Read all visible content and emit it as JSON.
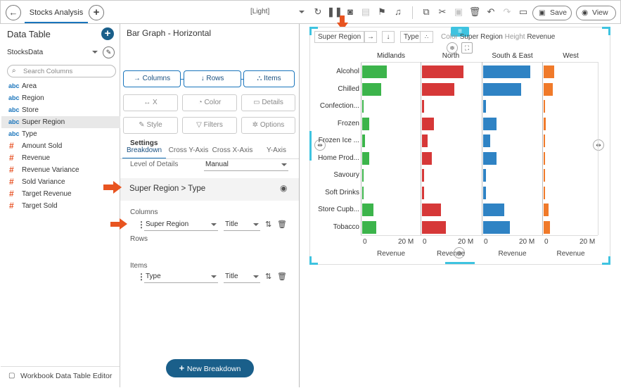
{
  "topbar": {
    "tab_label": "Stocks Analysis",
    "add_label": "+",
    "back_label": "←",
    "theme_label": "[Light]",
    "save_label": "Save",
    "view_label": "View"
  },
  "sidebar": {
    "title": "Data Table",
    "datasource": "StocksData",
    "search_placeholder": "Search Columns",
    "fields": [
      {
        "type": "abc",
        "name": "Area"
      },
      {
        "type": "abc",
        "name": "Region"
      },
      {
        "type": "abc",
        "name": "Store"
      },
      {
        "type": "abc",
        "name": "Super Region"
      },
      {
        "type": "abc",
        "name": "Type"
      },
      {
        "type": "#",
        "name": "Amount Sold"
      },
      {
        "type": "#",
        "name": "Revenue"
      },
      {
        "type": "#",
        "name": "Revenue Variance"
      },
      {
        "type": "#",
        "name": "Sold Variance"
      },
      {
        "type": "#",
        "name": "Target Revenue"
      },
      {
        "type": "#",
        "name": "Target Sold"
      }
    ],
    "footer_label": "Workbook Data Table Editor"
  },
  "panel": {
    "title": "Bar Graph - Horizontal",
    "segments": [
      "Columns",
      "Rows",
      "Items"
    ],
    "buttons": [
      "X",
      "Color",
      "Details",
      "Style",
      "Filters",
      "Options"
    ],
    "subtabs": [
      "Breakdown",
      "Cross Y-Axis",
      "Cross X-Axis",
      "Y-Axis"
    ],
    "settings_label": "Settings",
    "level_label": "Level of Details",
    "level_value": "Manual",
    "breakdown_path": "Super Region > Type",
    "columns_label": "Columns",
    "columns_field": "Super Region",
    "columns_title": "Title",
    "rows_label": "Rows",
    "items_label": "Items",
    "items_field": "Type",
    "items_title": "Title",
    "new_breakdown_label": "New Breakdown"
  },
  "viz": {
    "pills": {
      "super_region": "Super Region",
      "type": "Type"
    },
    "legend_color_label": "Color",
    "legend_color_value": "Super Region",
    "legend_height_label": "Height",
    "legend_height_value": "Revenue"
  },
  "chart_data": {
    "type": "bar",
    "orientation": "horizontal",
    "categories": [
      "Alcohol",
      "Chilled",
      "Confection...",
      "Frozen",
      "Frozen Ice ...",
      "Home Prod...",
      "Savoury",
      "Soft Drinks",
      "Store Cupb...",
      "Tobacco"
    ],
    "columns": [
      "Midlands",
      "North",
      "South & East",
      "West"
    ],
    "colors": [
      "#3cb44b",
      "#d63838",
      "#2f83c4",
      "#f07a2a"
    ],
    "xlabel": "Revenue",
    "xticks": [
      "0",
      "20 M"
    ],
    "series": [
      {
        "name": "Midlands",
        "values": [
          11,
          8.5,
          0.5,
          3.2,
          1.3,
          3.0,
          0.3,
          0.3,
          5.0,
          6.2
        ]
      },
      {
        "name": "North",
        "values": [
          18.5,
          14.5,
          1.0,
          5.2,
          2.5,
          4.5,
          1.0,
          1.0,
          8.5,
          10.5
        ]
      },
      {
        "name": "South & East",
        "values": [
          21,
          17,
          1.1,
          6.0,
          3.0,
          6.0,
          1.3,
          1.3,
          9.5,
          12.0
        ]
      },
      {
        "name": "West",
        "values": [
          4.8,
          4.0,
          0.2,
          0.8,
          0.3,
          0.7,
          0.2,
          0.2,
          2.2,
          2.8
        ]
      }
    ],
    "xlim": [
      0,
      22
    ]
  }
}
